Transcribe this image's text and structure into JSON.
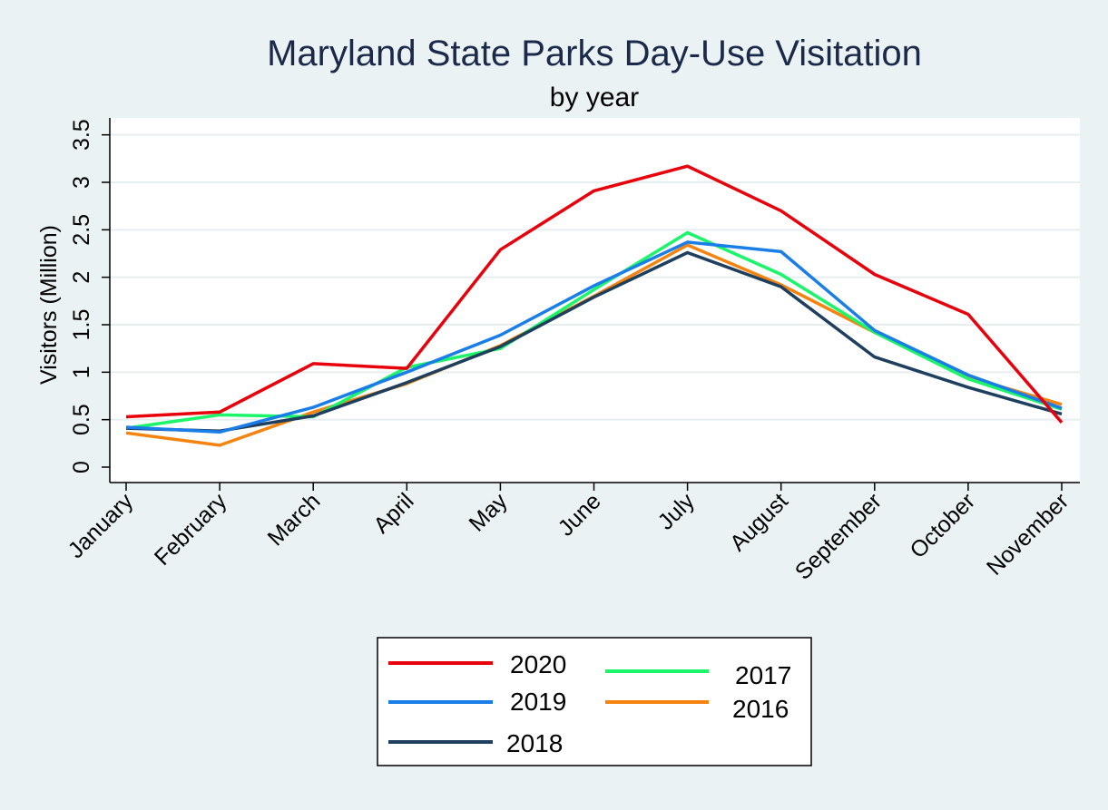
{
  "chart_data": {
    "type": "line",
    "title": "Maryland State Parks Day-Use Visitation",
    "subtitle": "by year",
    "ylabel": "Visitors (Million)",
    "xlabel": "",
    "ylim": [
      0,
      3.5
    ],
    "yticks": [
      0,
      0.5,
      1,
      1.5,
      2,
      2.5,
      3,
      3.5
    ],
    "ytick_labels": [
      "0",
      "0.5",
      "1",
      "1.5",
      "2",
      "2.5",
      "3",
      "3.5"
    ],
    "grid": true,
    "legend_position": "bottom",
    "categories": [
      "January",
      "February",
      "March",
      "April",
      "May",
      "June",
      "July",
      "August",
      "September",
      "October",
      "November"
    ],
    "series": [
      {
        "name": "2020",
        "color": "#e8000b",
        "values": [
          0.53,
          0.58,
          1.09,
          1.04,
          2.29,
          2.91,
          3.17,
          2.7,
          2.03,
          1.61,
          0.47
        ]
      },
      {
        "name": "2019",
        "color": "#1a7ee8",
        "values": [
          0.42,
          0.37,
          0.63,
          1.0,
          1.39,
          1.91,
          2.37,
          2.27,
          1.44,
          0.97,
          0.62
        ]
      },
      {
        "name": "2018",
        "color": "#1f3f5e",
        "values": [
          0.41,
          0.38,
          0.54,
          0.89,
          1.27,
          1.79,
          2.26,
          1.9,
          1.16,
          0.84,
          0.56
        ]
      },
      {
        "name": "2017",
        "color": "#1af56a",
        "values": [
          0.41,
          0.55,
          0.53,
          1.05,
          1.25,
          1.87,
          2.47,
          2.03,
          1.42,
          0.93,
          0.61
        ]
      },
      {
        "name": "2016",
        "color": "#f5830f",
        "values": [
          0.36,
          0.23,
          0.58,
          0.88,
          1.28,
          1.8,
          2.34,
          1.92,
          1.42,
          0.95,
          0.66
        ]
      }
    ]
  }
}
